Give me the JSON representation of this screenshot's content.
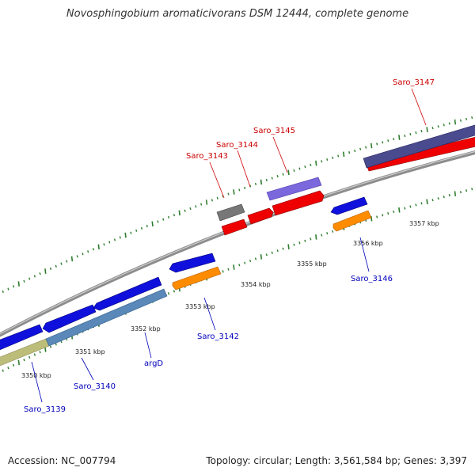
{
  "title": "Novosphingobium aromaticivorans DSM 12444, complete genome",
  "footer": {
    "accession": "Accession: NC_007794",
    "summary": "Topology: circular; Length: 3,561,584 bp; Genes: 3,397"
  },
  "colors": {
    "backbone": "#8c8c8c",
    "tick": "#2e7d2e",
    "forward_label": "#cc0000",
    "reverse_label": "#0000bb",
    "blue_gene": "#1010dd",
    "red_gene": "#ee0000",
    "orange_gene": "#ff8c00",
    "purple_gene": "#7b68dd",
    "navy_gene": "#4a4a8f",
    "gray_gene": "#777777",
    "steel_gene": "#5a88b8",
    "khaki_gene": "#bdbd7a"
  },
  "scale_labels": [
    "3350 kbp",
    "3351 kbp",
    "3352 kbp",
    "3353 kbp",
    "3354 kbp",
    "3355 kbp",
    "3356 kbp",
    "3357 kbp"
  ],
  "gene_labels": {
    "forward": [
      "Saro_3143",
      "Saro_3144",
      "Saro_3145",
      "Saro_3147"
    ],
    "reverse": [
      "Saro_3139",
      "Saro_3140",
      "argD",
      "Saro_3142",
      "Saro_3146"
    ]
  }
}
